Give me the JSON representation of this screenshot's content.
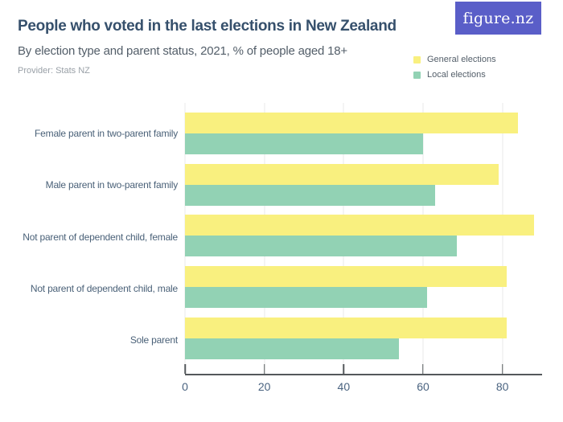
{
  "header": {
    "title": "People who voted in the last elections in New Zealand",
    "subtitle": "By election type and parent status, 2021, % of people aged 18+",
    "provider": "Provider: Stats NZ",
    "logo_text": "figure.nz"
  },
  "legend": {
    "items": [
      {
        "label": "General elections",
        "color": "#F9F07F"
      },
      {
        "label": "Local elections",
        "color": "#92D2B4"
      }
    ]
  },
  "chart_data": {
    "type": "bar",
    "orientation": "horizontal",
    "title": "People who voted in the last elections in New Zealand",
    "subtitle": "By election type and parent status, 2021, % of people aged 18+",
    "provider": "Provider: Stats NZ",
    "categories": [
      "Female parent in two-parent family",
      "Male parent in two-parent family",
      "Not parent of dependent child, female",
      "Not parent of dependent child, male",
      "Sole parent"
    ],
    "series": [
      {
        "name": "General elections",
        "color": "#F9F07F",
        "values": [
          84,
          79,
          88,
          81,
          81
        ]
      },
      {
        "name": "Local elections",
        "color": "#92D2B4",
        "values": [
          60,
          63,
          68.5,
          61,
          54
        ]
      }
    ],
    "xlabel": "",
    "ylabel": "",
    "xlim": [
      0,
      90
    ],
    "xticks": [
      0,
      20,
      40,
      60,
      80
    ],
    "grid": "vertical",
    "legend_position": "top-right",
    "value_unit": "% of people aged 18+"
  },
  "colors": {
    "logo_background": "#5A5EC8",
    "title_text": "#36506C",
    "subtitle_text": "#535E69",
    "provider_text": "#99A0A7",
    "axis_text": "#4A6380",
    "category_text": "#4A6178",
    "gridline": "#E8E8E8",
    "axis_line": "#54585B",
    "background": "#FFFFFF"
  }
}
